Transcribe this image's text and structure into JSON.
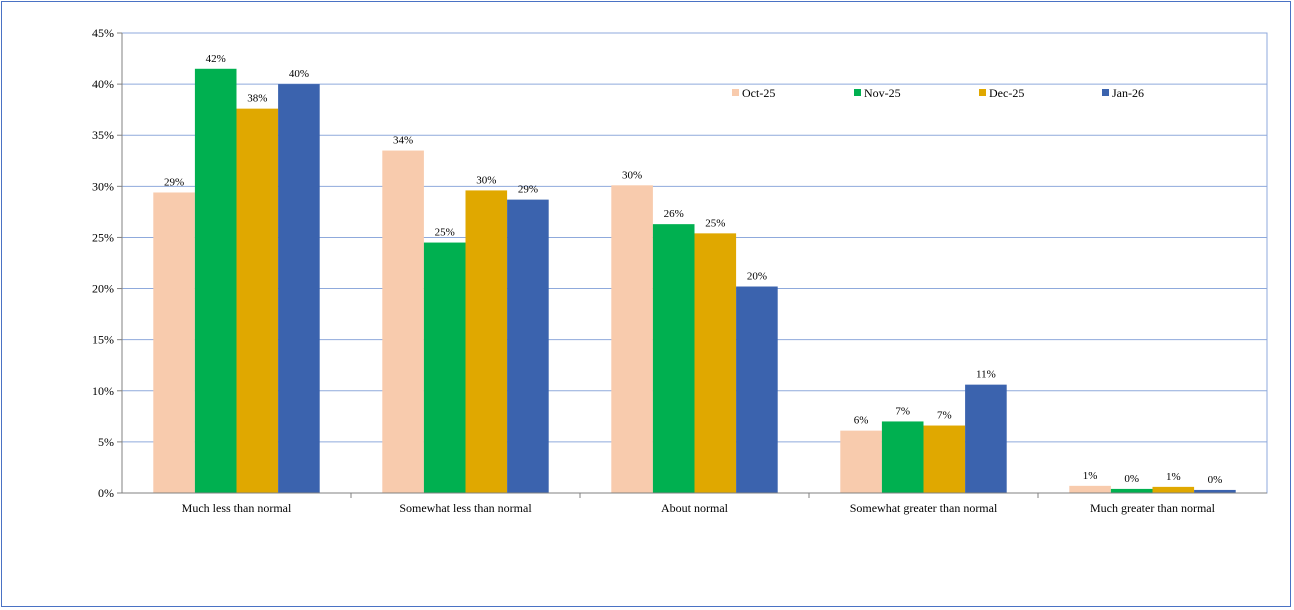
{
  "chart_data": {
    "type": "bar",
    "title": "",
    "xlabel": "",
    "ylabel": "",
    "ylim": [
      0,
      45
    ],
    "y_tick_step": 5,
    "y_tick_format": "percent",
    "grid": true,
    "legend_position": "top-right",
    "categories": [
      "Much less than normal",
      "Somewhat less than normal",
      "About normal",
      "Somewhat greater than normal",
      "Much greater than normal"
    ],
    "series": [
      {
        "name": "Oct-25",
        "color": "#f8cbad",
        "values": [
          29.4,
          33.5,
          30.1,
          6.1,
          0.7
        ],
        "labels": [
          "29%",
          "34%",
          "30%",
          "6%",
          "1%"
        ]
      },
      {
        "name": "Nov-25",
        "color": "#00b050",
        "values": [
          41.5,
          24.5,
          26.3,
          7.0,
          0.4
        ],
        "labels": [
          "42%",
          "25%",
          "26%",
          "7%",
          "0%"
        ]
      },
      {
        "name": "Dec-25",
        "color": "#e0a800",
        "values": [
          37.6,
          29.6,
          25.4,
          6.6,
          0.6
        ],
        "labels": [
          "38%",
          "30%",
          "25%",
          "7%",
          "1%"
        ]
      },
      {
        "name": "Jan-26",
        "color": "#3b63ae",
        "values": [
          40.0,
          28.7,
          20.2,
          10.6,
          0.3
        ],
        "labels": [
          "40%",
          "29%",
          "20%",
          "11%",
          "0%"
        ]
      }
    ]
  }
}
